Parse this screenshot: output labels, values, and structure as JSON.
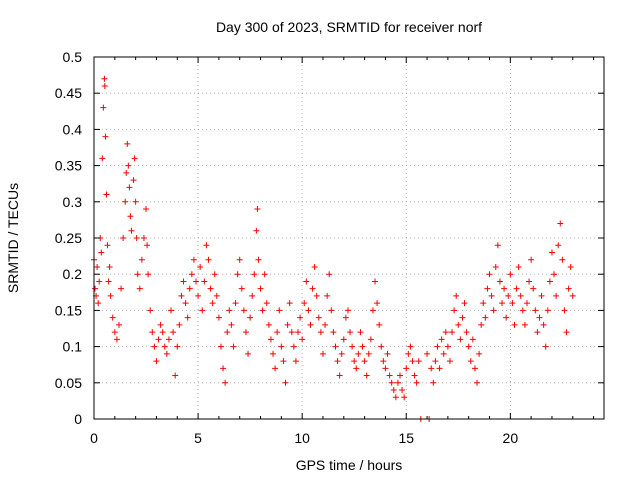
{
  "chart_data": {
    "type": "scatter",
    "title": "Day 300 of 2023, SRMTID for receiver norf",
    "xlabel": "GPS time / hours",
    "ylabel": "SRMTID / TECUs",
    "xlim": [
      0,
      24.5
    ],
    "ylim": [
      0,
      0.5
    ],
    "x_ticks": [
      0,
      5,
      10,
      15,
      20
    ],
    "x_tick_labels": [
      "0",
      "5",
      "10",
      "15",
      "20"
    ],
    "y_ticks": [
      0,
      0.05,
      0.1,
      0.15,
      0.2,
      0.25,
      0.3,
      0.35,
      0.4,
      0.45,
      0.5
    ],
    "y_tick_labels": [
      "0",
      "0.05",
      "0.1",
      "0.15",
      "0.2",
      "0.25",
      "0.3",
      "0.35",
      "0.4",
      "0.45",
      "0.5"
    ],
    "grid": true,
    "marker": "+",
    "color": "#ff0000",
    "series": [
      {
        "name": "SRMTID",
        "points": [
          [
            0.0,
            0.22
          ],
          [
            0.05,
            0.18
          ],
          [
            0.1,
            0.17
          ],
          [
            0.15,
            0.21
          ],
          [
            0.2,
            0.16
          ],
          [
            0.25,
            0.19
          ],
          [
            0.3,
            0.25
          ],
          [
            0.35,
            0.23
          ],
          [
            0.4,
            0.36
          ],
          [
            0.45,
            0.43
          ],
          [
            0.5,
            0.47
          ],
          [
            0.52,
            0.46
          ],
          [
            0.55,
            0.39
          ],
          [
            0.6,
            0.31
          ],
          [
            0.65,
            0.24
          ],
          [
            0.7,
            0.19
          ],
          [
            0.75,
            0.21
          ],
          [
            0.8,
            0.17
          ],
          [
            0.9,
            0.14
          ],
          [
            1.0,
            0.12
          ],
          [
            1.1,
            0.11
          ],
          [
            1.2,
            0.13
          ],
          [
            1.3,
            0.18
          ],
          [
            1.4,
            0.25
          ],
          [
            1.5,
            0.3
          ],
          [
            1.55,
            0.34
          ],
          [
            1.6,
            0.38
          ],
          [
            1.65,
            0.35
          ],
          [
            1.7,
            0.32
          ],
          [
            1.75,
            0.28
          ],
          [
            1.8,
            0.26
          ],
          [
            1.9,
            0.33
          ],
          [
            1.95,
            0.36
          ],
          [
            2.0,
            0.3
          ],
          [
            2.05,
            0.25
          ],
          [
            2.1,
            0.2
          ],
          [
            2.2,
            0.18
          ],
          [
            2.3,
            0.22
          ],
          [
            2.4,
            0.25
          ],
          [
            2.5,
            0.29
          ],
          [
            2.55,
            0.24
          ],
          [
            2.6,
            0.2
          ],
          [
            2.7,
            0.15
          ],
          [
            2.8,
            0.12
          ],
          [
            2.9,
            0.1
          ],
          [
            3.0,
            0.08
          ],
          [
            3.1,
            0.11
          ],
          [
            3.2,
            0.13
          ],
          [
            3.3,
            0.12
          ],
          [
            3.4,
            0.1
          ],
          [
            3.5,
            0.09
          ],
          [
            3.6,
            0.11
          ],
          [
            3.7,
            0.15
          ],
          [
            3.8,
            0.12
          ],
          [
            3.9,
            0.06
          ],
          [
            4.0,
            0.1
          ],
          [
            4.1,
            0.13
          ],
          [
            4.2,
            0.17
          ],
          [
            4.3,
            0.19
          ],
          [
            4.4,
            0.16
          ],
          [
            4.5,
            0.14
          ],
          [
            4.6,
            0.18
          ],
          [
            4.7,
            0.2
          ],
          [
            4.8,
            0.22
          ],
          [
            4.9,
            0.19
          ],
          [
            5.0,
            0.17
          ],
          [
            5.1,
            0.21
          ],
          [
            5.2,
            0.15
          ],
          [
            5.3,
            0.19
          ],
          [
            5.4,
            0.24
          ],
          [
            5.5,
            0.22
          ],
          [
            5.6,
            0.18
          ],
          [
            5.7,
            0.16
          ],
          [
            5.8,
            0.2
          ],
          [
            5.9,
            0.17
          ],
          [
            6.0,
            0.14
          ],
          [
            6.1,
            0.1
          ],
          [
            6.2,
            0.07
          ],
          [
            6.3,
            0.05
          ],
          [
            6.4,
            0.12
          ],
          [
            6.5,
            0.15
          ],
          [
            6.6,
            0.13
          ],
          [
            6.7,
            0.1
          ],
          [
            6.8,
            0.16
          ],
          [
            6.9,
            0.2
          ],
          [
            7.0,
            0.22
          ],
          [
            7.1,
            0.18
          ],
          [
            7.2,
            0.15
          ],
          [
            7.3,
            0.12
          ],
          [
            7.4,
            0.09
          ],
          [
            7.5,
            0.14
          ],
          [
            7.6,
            0.17
          ],
          [
            7.7,
            0.2
          ],
          [
            7.8,
            0.26
          ],
          [
            7.85,
            0.29
          ],
          [
            7.9,
            0.22
          ],
          [
            8.0,
            0.18
          ],
          [
            8.1,
            0.15
          ],
          [
            8.2,
            0.2
          ],
          [
            8.3,
            0.16
          ],
          [
            8.4,
            0.13
          ],
          [
            8.5,
            0.11
          ],
          [
            8.6,
            0.09
          ],
          [
            8.7,
            0.07
          ],
          [
            8.8,
            0.12
          ],
          [
            8.9,
            0.15
          ],
          [
            9.0,
            0.1
          ],
          [
            9.1,
            0.08
          ],
          [
            9.2,
            0.05
          ],
          [
            9.3,
            0.13
          ],
          [
            9.4,
            0.16
          ],
          [
            9.5,
            0.12
          ],
          [
            9.6,
            0.1
          ],
          [
            9.7,
            0.08
          ],
          [
            9.8,
            0.12
          ],
          [
            9.9,
            0.14
          ],
          [
            10.0,
            0.11
          ],
          [
            10.1,
            0.16
          ],
          [
            10.2,
            0.19
          ],
          [
            10.3,
            0.15
          ],
          [
            10.4,
            0.13
          ],
          [
            10.5,
            0.18
          ],
          [
            10.6,
            0.21
          ],
          [
            10.7,
            0.17
          ],
          [
            10.8,
            0.14
          ],
          [
            10.9,
            0.12
          ],
          [
            11.0,
            0.09
          ],
          [
            11.1,
            0.13
          ],
          [
            11.2,
            0.17
          ],
          [
            11.3,
            0.2
          ],
          [
            11.4,
            0.15
          ],
          [
            11.5,
            0.12
          ],
          [
            11.6,
            0.1
          ],
          [
            11.7,
            0.08
          ],
          [
            11.8,
            0.06
          ],
          [
            11.9,
            0.09
          ],
          [
            12.0,
            0.11
          ],
          [
            12.1,
            0.14
          ],
          [
            12.2,
            0.15
          ],
          [
            12.3,
            0.12
          ],
          [
            12.4,
            0.1
          ],
          [
            12.5,
            0.08
          ],
          [
            12.6,
            0.07
          ],
          [
            12.7,
            0.09
          ],
          [
            12.8,
            0.12
          ],
          [
            12.9,
            0.1
          ],
          [
            13.0,
            0.08
          ],
          [
            13.1,
            0.06
          ],
          [
            13.2,
            0.09
          ],
          [
            13.3,
            0.11
          ],
          [
            13.4,
            0.15
          ],
          [
            13.5,
            0.19
          ],
          [
            13.6,
            0.16
          ],
          [
            13.7,
            0.13
          ],
          [
            13.8,
            0.1
          ],
          [
            13.9,
            0.08
          ],
          [
            14.0,
            0.07
          ],
          [
            14.1,
            0.09
          ],
          [
            14.2,
            0.06
          ],
          [
            14.3,
            0.05
          ],
          [
            14.4,
            0.04
          ],
          [
            14.5,
            0.03
          ],
          [
            14.6,
            0.05
          ],
          [
            14.7,
            0.06
          ],
          [
            14.8,
            0.04
          ],
          [
            14.9,
            0.03
          ],
          [
            15.0,
            0.07
          ],
          [
            15.1,
            0.09
          ],
          [
            15.2,
            0.1
          ],
          [
            15.3,
            0.08
          ],
          [
            15.4,
            0.06
          ],
          [
            15.5,
            0.05
          ],
          [
            15.6,
            0.08
          ],
          [
            15.7,
            0.0
          ],
          [
            16.0,
            0.09
          ],
          [
            16.1,
            0.0
          ],
          [
            16.2,
            0.07
          ],
          [
            16.3,
            0.05
          ],
          [
            16.4,
            0.08
          ],
          [
            16.5,
            0.1
          ],
          [
            16.6,
            0.07
          ],
          [
            16.7,
            0.11
          ],
          [
            16.8,
            0.09
          ],
          [
            16.9,
            0.12
          ],
          [
            17.0,
            0.1
          ],
          [
            17.1,
            0.08
          ],
          [
            17.2,
            0.12
          ],
          [
            17.3,
            0.15
          ],
          [
            17.4,
            0.17
          ],
          [
            17.5,
            0.13
          ],
          [
            17.6,
            0.11
          ],
          [
            17.7,
            0.14
          ],
          [
            17.8,
            0.16
          ],
          [
            17.9,
            0.12
          ],
          [
            18.0,
            0.1
          ],
          [
            18.1,
            0.08
          ],
          [
            18.2,
            0.11
          ],
          [
            18.3,
            0.07
          ],
          [
            18.4,
            0.05
          ],
          [
            18.5,
            0.09
          ],
          [
            18.6,
            0.13
          ],
          [
            18.7,
            0.16
          ],
          [
            18.8,
            0.14
          ],
          [
            18.9,
            0.18
          ],
          [
            19.0,
            0.2
          ],
          [
            19.1,
            0.17
          ],
          [
            19.2,
            0.15
          ],
          [
            19.3,
            0.21
          ],
          [
            19.4,
            0.24
          ],
          [
            19.5,
            0.19
          ],
          [
            19.6,
            0.16
          ],
          [
            19.7,
            0.18
          ],
          [
            19.8,
            0.14
          ],
          [
            19.9,
            0.17
          ],
          [
            20.0,
            0.2
          ],
          [
            20.1,
            0.16
          ],
          [
            20.2,
            0.13
          ],
          [
            20.3,
            0.18
          ],
          [
            20.4,
            0.21
          ],
          [
            20.5,
            0.17
          ],
          [
            20.6,
            0.15
          ],
          [
            20.7,
            0.13
          ],
          [
            20.8,
            0.16
          ],
          [
            20.9,
            0.19
          ],
          [
            21.0,
            0.22
          ],
          [
            21.1,
            0.18
          ],
          [
            21.2,
            0.15
          ],
          [
            21.3,
            0.12
          ],
          [
            21.4,
            0.14
          ],
          [
            21.5,
            0.17
          ],
          [
            21.6,
            0.13
          ],
          [
            21.7,
            0.1
          ],
          [
            21.8,
            0.15
          ],
          [
            21.9,
            0.19
          ],
          [
            22.0,
            0.23
          ],
          [
            22.1,
            0.2
          ],
          [
            22.2,
            0.17
          ],
          [
            22.3,
            0.24
          ],
          [
            22.4,
            0.27
          ],
          [
            22.5,
            0.22
          ],
          [
            22.6,
            0.15
          ],
          [
            22.7,
            0.12
          ],
          [
            22.8,
            0.18
          ],
          [
            22.9,
            0.21
          ],
          [
            23.0,
            0.17
          ]
        ]
      }
    ]
  }
}
